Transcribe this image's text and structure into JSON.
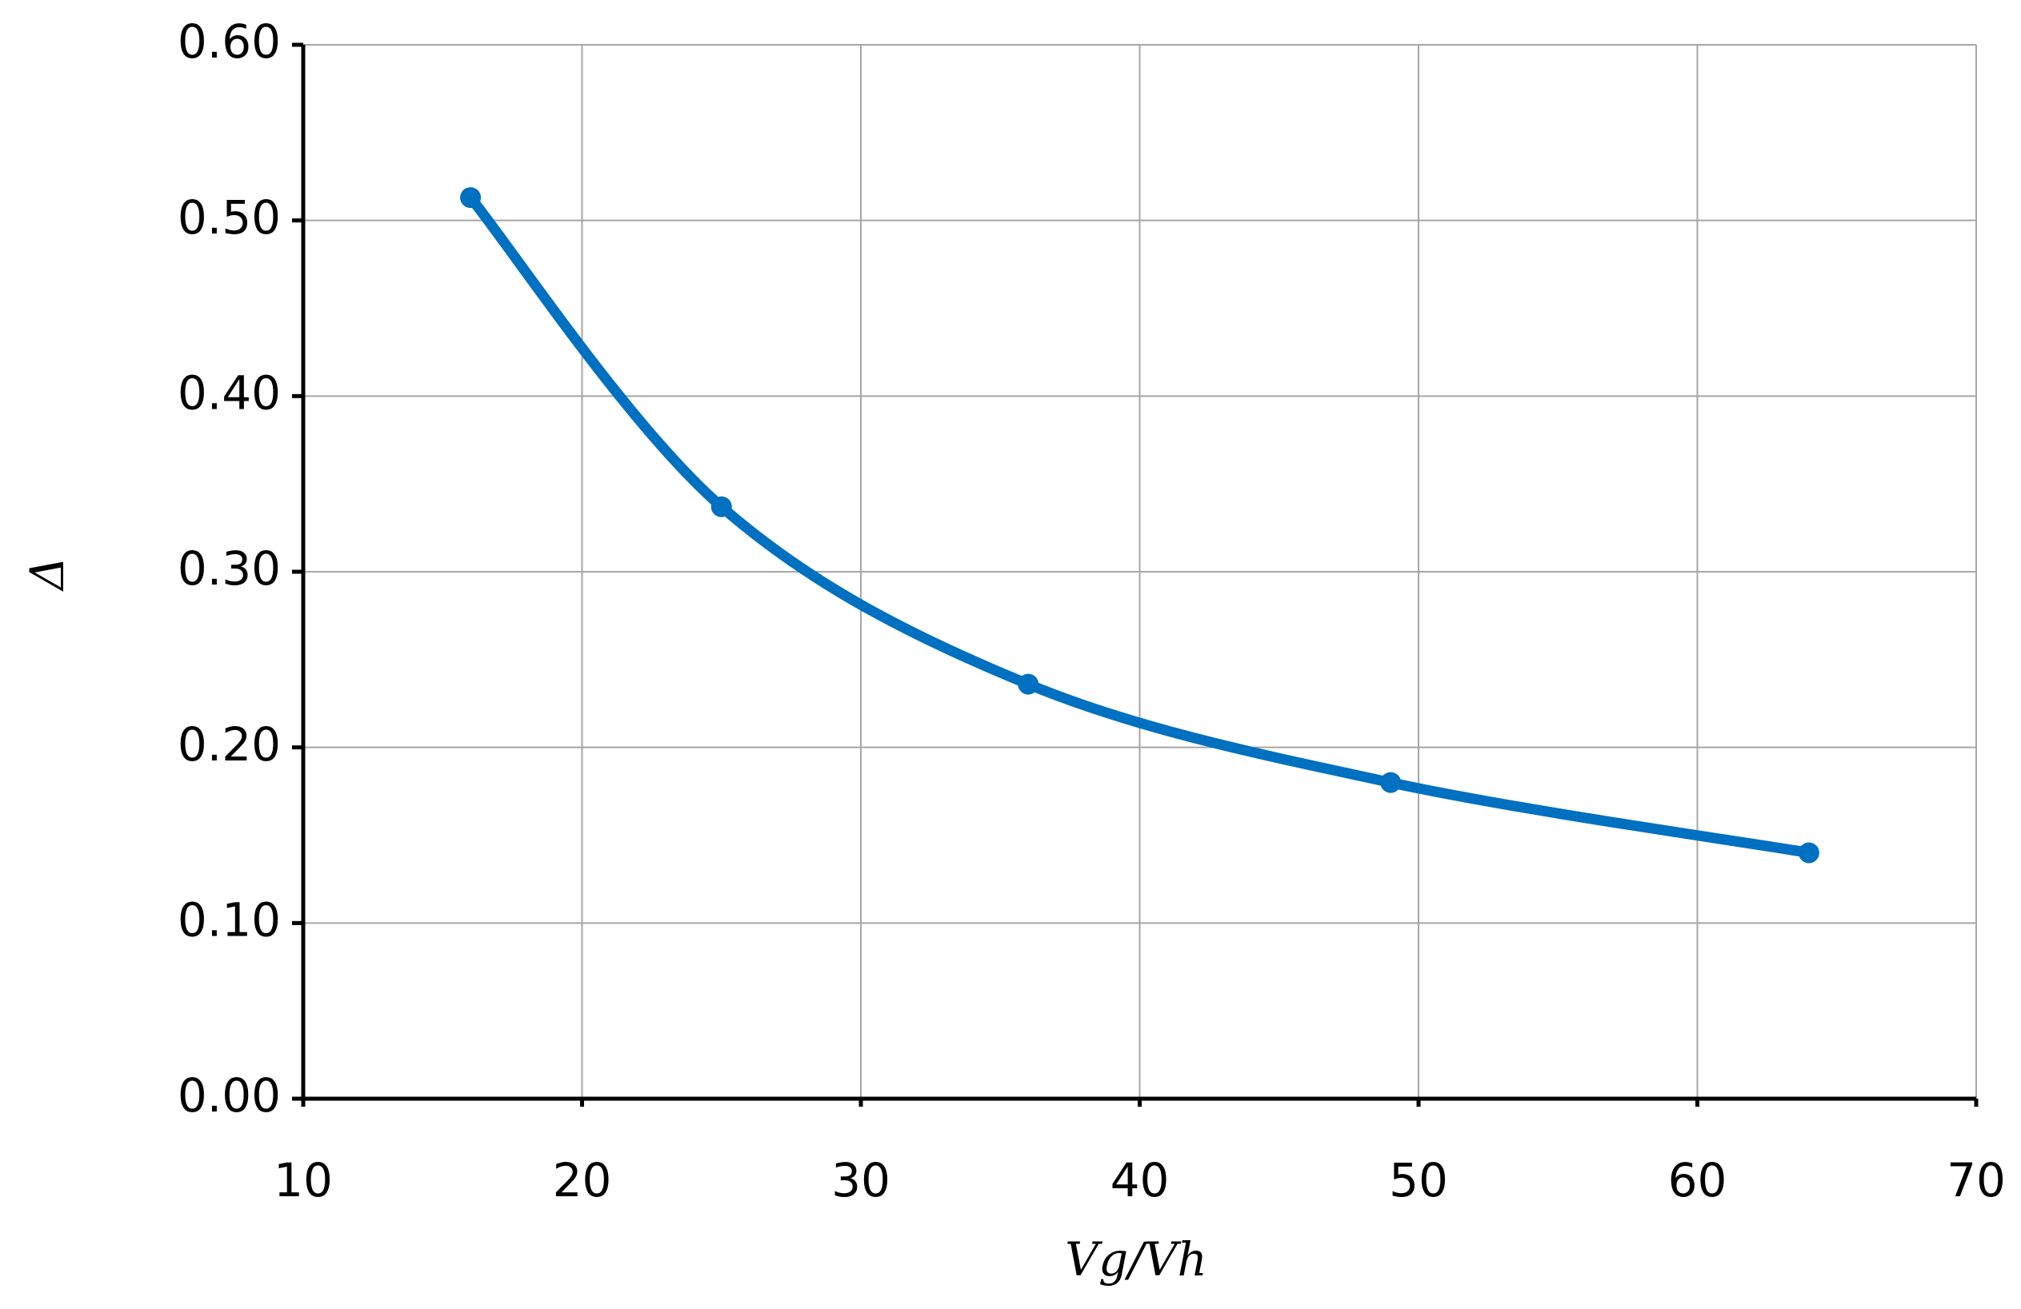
{
  "chart_data": {
    "type": "line",
    "x_label": "Vg/Vh",
    "y_label": "Δ",
    "x": [
      16,
      25,
      36,
      49,
      64
    ],
    "series": [
      {
        "color": "#0070c0",
        "values": [
          0.513,
          0.337,
          0.236,
          0.18,
          0.14
        ]
      }
    ],
    "smooth": true,
    "markers": true,
    "xlim": [
      10,
      70
    ],
    "xticks": [
      10,
      20,
      30,
      40,
      50,
      60,
      70
    ],
    "ylim": [
      0,
      0.6
    ],
    "yticks": [
      {
        "value": 0,
        "label": "0.00"
      },
      {
        "value": 0.1,
        "label": "0.10"
      },
      {
        "value": 0.2,
        "label": "0.20"
      },
      {
        "value": 0.3,
        "label": "0.30"
      },
      {
        "value": 0.4,
        "label": "0.40"
      },
      {
        "value": 0.5,
        "label": "0.50"
      },
      {
        "value": 0.6,
        "label": "0.60"
      }
    ],
    "grid": true
  }
}
